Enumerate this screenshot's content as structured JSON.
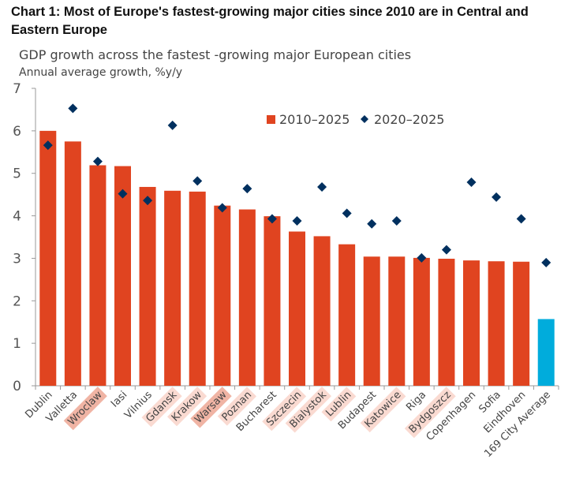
{
  "chart_data": {
    "type": "bar",
    "title": "Chart 1: Most of Europe's fastest-growing major cities since 2010 are in Central and Eastern Europe",
    "subtitle": "GDP growth across the fastest -growing major European cities",
    "ylabel": "Annual average growth, %y/y",
    "xlabel": "",
    "ylim": [
      0,
      7
    ],
    "yticks": [
      0,
      1,
      2,
      3,
      4,
      5,
      6,
      7
    ],
    "grid": false,
    "legend_position": "top-right",
    "categories": [
      "Dublin",
      "Valletta",
      "Wroclaw",
      "Iasi",
      "Vilnius",
      "Gdansk",
      "Krakow",
      "Warsaw",
      "Poznan",
      "Bucharest",
      "Szczecin",
      "Bialystok",
      "Lublin",
      "Budapest",
      "Katowice",
      "Riga",
      "Bydgoszcz",
      "Copenhagen",
      "Sofia",
      "Eindhoven",
      "169 City Average"
    ],
    "highlighted_categories": {
      "Wroclaw": "#f0b4a4",
      "Warsaw": "#f0b4a4",
      "Gdansk": "#fadad1",
      "Krakow": "#fadad1",
      "Poznan": "#fadad1",
      "Szczecin": "#fadad1",
      "Bialystok": "#fadad1",
      "Lublin": "#fadad1",
      "Katowice": "#fadad1",
      "Bydgoszcz": "#fadad1"
    },
    "series": [
      {
        "name": "2010–2025",
        "type": "bar",
        "color": "#e04420",
        "highlight_color": "#00acdc",
        "highlight_category": "169 City Average",
        "values": [
          6.0,
          5.75,
          5.19,
          5.17,
          4.68,
          4.59,
          4.57,
          4.24,
          4.15,
          3.99,
          3.63,
          3.52,
          3.33,
          3.04,
          3.04,
          3.01,
          2.99,
          2.95,
          2.93,
          2.92,
          1.57
        ]
      },
      {
        "name": "2020–2025",
        "type": "scatter",
        "marker": "diamond",
        "color": "#00305f",
        "values": [
          5.66,
          6.53,
          5.28,
          4.52,
          4.36,
          6.13,
          4.82,
          4.19,
          4.64,
          3.93,
          3.88,
          4.68,
          4.06,
          3.81,
          3.88,
          3.01,
          3.2,
          4.79,
          4.44,
          3.93,
          2.9
        ]
      }
    ]
  }
}
